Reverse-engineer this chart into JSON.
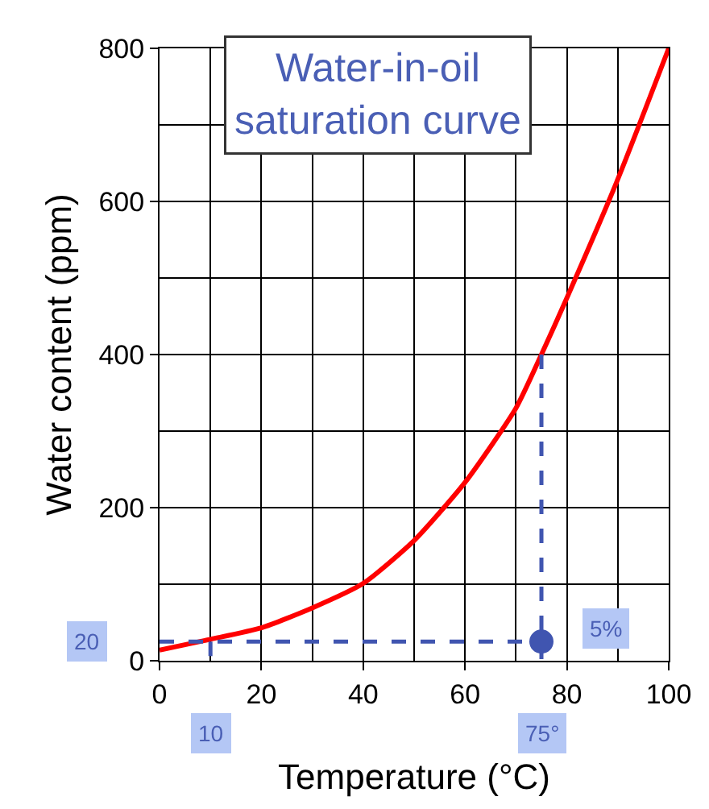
{
  "chart_data": {
    "type": "line",
    "title": "Water-in-oil\nsaturation curve",
    "xlabel": "Temperature (°C)",
    "ylabel": "Water content (ppm)",
    "xlim": [
      0,
      100
    ],
    "xticks": [
      0,
      20,
      40,
      60,
      80,
      100
    ],
    "ylim": [
      0,
      800
    ],
    "yticks": [
      0,
      200,
      400,
      600,
      800
    ],
    "grid": true,
    "series": [
      {
        "x": [
          0,
          10,
          20,
          30,
          40,
          50,
          60,
          70,
          75,
          80,
          90,
          100
        ],
        "values": [
          14,
          28,
          43,
          69,
          101,
          157,
          233,
          330,
          400,
          474,
          629,
          800
        ],
        "color": "#ff0000",
        "line_style": "solid",
        "marker": "none"
      },
      {
        "x": [
          0,
          75
        ],
        "values": [
          25,
          25
        ],
        "color": "#4055b0",
        "line_style": "dashed",
        "marker": "none"
      },
      {
        "x": [
          10,
          10
        ],
        "values": [
          25,
          0
        ],
        "color": "#4055b0",
        "line_style": "dashed",
        "marker": "none"
      },
      {
        "x": [
          75,
          75
        ],
        "values": [
          400,
          0
        ],
        "color": "#4055b0",
        "line_style": "dashed",
        "marker": "none"
      },
      {
        "type": "scatter",
        "x": [
          75
        ],
        "values": [
          25
        ],
        "color": "#4055b0",
        "marker": "circle"
      }
    ],
    "annotations": [
      {
        "text": "20",
        "x": 0,
        "y": 25
      },
      {
        "text": "10",
        "x": 10,
        "y": 0
      },
      {
        "text": "75°",
        "x": 75,
        "y": 0
      },
      {
        "text": "5%",
        "x": 75,
        "y": 25
      }
    ]
  }
}
